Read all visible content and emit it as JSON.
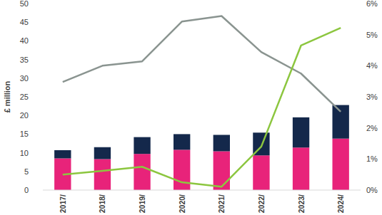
{
  "chart_data": {
    "type": "bar",
    "stacked": true,
    "y_label": "£ million",
    "categories": [
      "2017/",
      "2018/",
      "2019/",
      "2020/",
      "2021/",
      "2022/",
      "2023/",
      "2024/"
    ],
    "series": [
      {
        "type": "bar",
        "color": "#e8237a",
        "values": [
          8.5,
          8.3,
          9.7,
          10.8,
          10.4,
          9.3,
          11.4,
          13.8
        ]
      },
      {
        "type": "bar",
        "color": "#14284b",
        "values": [
          2.2,
          3.2,
          4.5,
          4.2,
          4.4,
          6.1,
          8.1,
          9.0
        ]
      },
      {
        "type": "line",
        "axis": "y2",
        "color": "#8a9490",
        "values": [
          3.48,
          4.0,
          4.14,
          5.42,
          5.6,
          4.44,
          3.75,
          2.52
        ]
      },
      {
        "type": "line",
        "axis": "y2",
        "color": "#8cc63f",
        "values": [
          0.5,
          0.62,
          0.75,
          0.25,
          0.11,
          1.4,
          4.65,
          5.22
        ]
      }
    ],
    "ylim": [
      0,
      50
    ],
    "yticks": [
      0,
      5,
      10,
      15,
      20,
      25,
      30,
      35,
      40,
      45,
      50
    ],
    "y2lim": [
      0,
      6
    ],
    "y2ticks": [
      {
        "value": 0,
        "label": "0%"
      },
      {
        "value": 1,
        "label": "1%"
      },
      {
        "value": 2,
        "label": "2%"
      },
      {
        "value": 3,
        "label": "3%"
      },
      {
        "value": 4,
        "label": "4%"
      },
      {
        "value": 5,
        "label": "5%"
      },
      {
        "value": 6,
        "label": "6%"
      }
    ],
    "grid": false
  }
}
